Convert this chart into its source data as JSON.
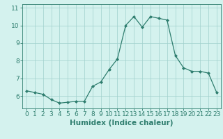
{
  "x": [
    0,
    1,
    2,
    3,
    4,
    5,
    6,
    7,
    8,
    9,
    10,
    11,
    12,
    13,
    14,
    15,
    16,
    17,
    18,
    19,
    20,
    21,
    22,
    23
  ],
  "y": [
    6.3,
    6.2,
    6.1,
    5.8,
    5.6,
    5.65,
    5.7,
    5.7,
    6.55,
    6.8,
    7.5,
    8.1,
    10.0,
    10.5,
    9.9,
    10.5,
    10.4,
    10.3,
    8.3,
    7.6,
    7.4,
    7.4,
    7.3,
    6.2
  ],
  "line_color": "#2e7d6e",
  "marker": "D",
  "marker_size": 2.0,
  "bg_color": "#d4f2ee",
  "grid_color": "#a0d0cc",
  "xlabel": "Humidex (Indice chaleur)",
  "xlabel_fontsize": 7.5,
  "tick_fontsize": 6.5,
  "ylim": [
    5.3,
    11.2
  ],
  "yticks": [
    6,
    7,
    8,
    9,
    10,
    11
  ],
  "xlim": [
    -0.5,
    23.5
  ],
  "xticks": [
    0,
    1,
    2,
    3,
    4,
    5,
    6,
    7,
    8,
    9,
    10,
    11,
    12,
    13,
    14,
    15,
    16,
    17,
    18,
    19,
    20,
    21,
    22,
    23
  ]
}
